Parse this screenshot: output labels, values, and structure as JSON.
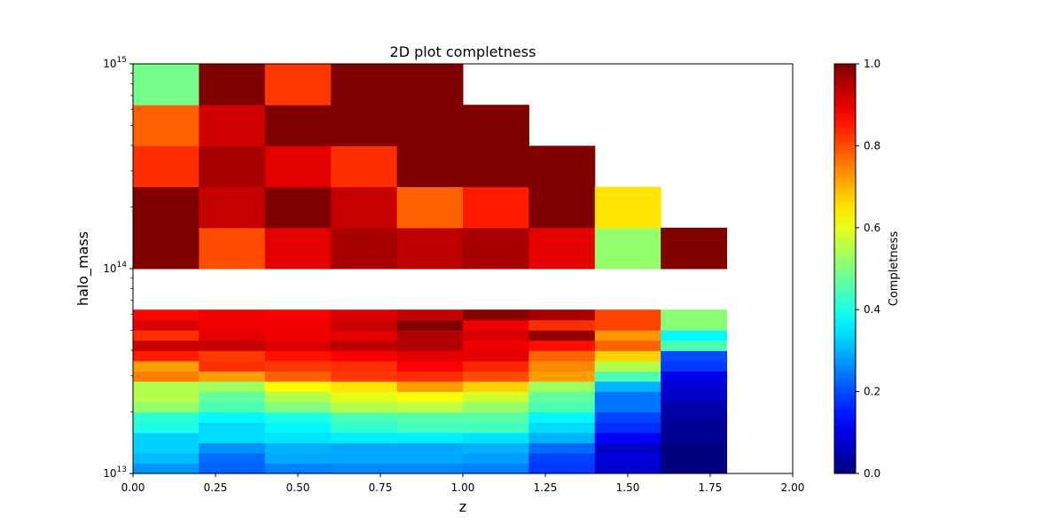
{
  "chart_data": {
    "type": "heatmap",
    "title": "2D plot completness",
    "xlabel": "z",
    "ylabel": "halo_mass",
    "colorbar_label": "Completness",
    "colormap": "jet",
    "x_edges": [
      0,
      0.2,
      0.4,
      0.6,
      0.8,
      1.0,
      1.2,
      1.4,
      1.6,
      1.8
    ],
    "y_edges_log10": [
      13.0,
      13.05,
      13.1,
      13.15,
      13.2,
      13.25,
      13.3,
      13.35,
      13.4,
      13.45,
      13.5,
      13.55,
      13.6,
      13.65,
      13.7,
      13.75,
      13.8,
      13.85,
      13.9,
      13.95,
      14.0
    ],
    "xlim": [
      0,
      2
    ],
    "ylim": [
      10000000000000,
      1000000000000000
    ],
    "yscale": "log",
    "x_ticks": [
      "0.00",
      "0.25",
      "0.50",
      "0.75",
      "1.00",
      "1.25",
      "1.50",
      "1.75",
      "2.00"
    ],
    "x_tick_values": [
      0,
      0.25,
      0.5,
      0.75,
      1.0,
      1.25,
      1.5,
      1.75,
      2.0
    ],
    "y_ticks": [
      {
        "base": "10",
        "exp": "13",
        "log10": 13
      },
      {
        "base": "10",
        "exp": "14",
        "log10": 14
      },
      {
        "base": "10",
        "exp": "15",
        "log10": 15
      }
    ],
    "colorbar_ticks": [
      "0.0",
      "0.2",
      "0.4",
      "0.6",
      "0.8",
      "1.0"
    ],
    "colorbar_tick_values": [
      0,
      0.2,
      0.4,
      0.6,
      0.8,
      1.0
    ],
    "clim": [
      0,
      1
    ],
    "grid": false,
    "values": [
      [
        0.27,
        0.22,
        0.25,
        0.26,
        0.26,
        0.25,
        0.18,
        0.08,
        0.0
      ],
      [
        0.31,
        0.23,
        0.29,
        0.29,
        0.29,
        0.28,
        0.19,
        0.09,
        0.0
      ],
      [
        0.33,
        0.27,
        0.3,
        0.29,
        0.29,
        0.3,
        0.23,
        0.07,
        0.0
      ],
      [
        0.33,
        0.34,
        0.35,
        0.36,
        0.36,
        0.35,
        0.3,
        0.12,
        0.02
      ],
      [
        0.4,
        0.34,
        0.37,
        0.42,
        0.44,
        0.44,
        0.34,
        0.17,
        0.02
      ],
      [
        0.42,
        0.37,
        0.4,
        0.45,
        0.46,
        0.46,
        0.37,
        0.19,
        0.03
      ],
      [
        0.52,
        0.45,
        0.5,
        0.55,
        0.56,
        0.52,
        0.45,
        0.24,
        0.04
      ],
      [
        0.55,
        0.47,
        0.55,
        0.6,
        0.62,
        0.58,
        0.47,
        0.24,
        0.07
      ],
      [
        0.55,
        0.53,
        0.63,
        0.65,
        0.72,
        0.67,
        0.53,
        0.3,
        0.08
      ],
      [
        0.75,
        0.72,
        0.78,
        0.82,
        0.83,
        0.8,
        0.72,
        0.45,
        0.1
      ],
      [
        0.72,
        0.83,
        0.82,
        0.83,
        0.88,
        0.84,
        0.74,
        0.55,
        0.18
      ],
      [
        0.85,
        0.82,
        0.86,
        0.88,
        0.9,
        0.9,
        0.78,
        0.67,
        0.2
      ],
      [
        0.93,
        0.93,
        0.91,
        0.94,
        0.95,
        0.89,
        0.86,
        0.78,
        0.45
      ],
      [
        0.83,
        0.9,
        0.89,
        0.9,
        0.95,
        0.91,
        0.98,
        0.73,
        0.37
      ],
      [
        0.91,
        0.89,
        0.89,
        0.93,
        1.0,
        0.89,
        0.83,
        0.81,
        0.51
      ],
      [
        0.87,
        0.89,
        0.88,
        0.91,
        0.93,
        0.99,
        0.96,
        0.81,
        0.51
      ]
    ],
    "tall_columns": [
      {
        "x0": 0.0,
        "cells": [
          1.0,
          1.0,
          0.83,
          0.78,
          0.49
        ]
      },
      {
        "x0": 0.2,
        "cells": [
          0.8,
          0.93,
          0.96,
          0.92,
          1.0
        ]
      },
      {
        "x0": 0.4,
        "cells": [
          0.9,
          1.0,
          0.9,
          1.0,
          0.82
        ]
      },
      {
        "x0": 0.6,
        "cells": [
          0.96,
          0.93,
          0.83,
          1.0,
          1.0
        ]
      },
      {
        "x0": 0.8,
        "cells": [
          0.94,
          0.78,
          1.0,
          1.0,
          1.0
        ]
      },
      {
        "x0": 1.0,
        "cells": [
          0.96,
          0.85,
          1.0,
          1.0
        ]
      },
      {
        "x0": 1.2,
        "cells": [
          0.9,
          1.0,
          1.0
        ]
      },
      {
        "x0": 1.4,
        "cells": [
          0.52,
          0.65
        ]
      },
      {
        "x0": 1.6,
        "cells": [
          1.0
        ]
      }
    ]
  }
}
